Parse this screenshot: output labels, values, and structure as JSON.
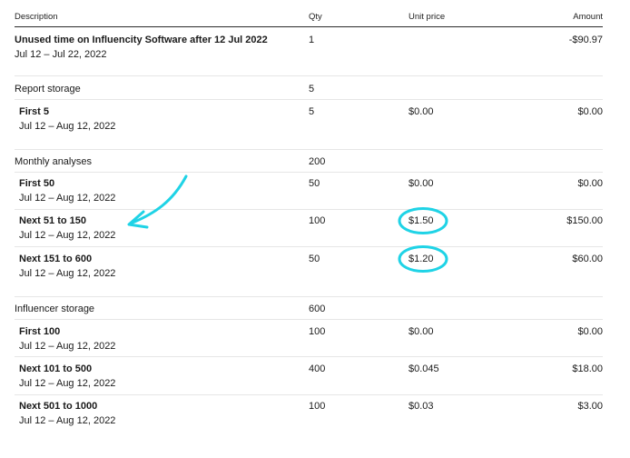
{
  "table": {
    "headers": {
      "description": "Description",
      "qty": "Qty",
      "unit_price": "Unit price",
      "amount": "Amount"
    },
    "rows": [
      {
        "kind": "line",
        "title": "Unused time on Influencity Software after 12 Jul 2022",
        "subtitle": "Jul 12 – Jul 22, 2022",
        "qty": "1",
        "unit_price": "",
        "amount": "-$90.97"
      },
      {
        "kind": "group",
        "title": "Report storage",
        "qty": "5"
      },
      {
        "kind": "tier",
        "title": "First 5",
        "subtitle": "Jul 12 – Aug 12, 2022",
        "qty": "5",
        "unit_price": "$0.00",
        "amount": "$0.00"
      },
      {
        "kind": "group",
        "title": "Monthly analyses",
        "qty": "200"
      },
      {
        "kind": "tier",
        "title": "First 50",
        "subtitle": "Jul 12 – Aug 12, 2022",
        "qty": "50",
        "unit_price": "$0.00",
        "amount": "$0.00"
      },
      {
        "kind": "tier",
        "title": "Next 51 to 150",
        "subtitle": "Jul 12 – Aug 12, 2022",
        "qty": "100",
        "unit_price": "$1.50",
        "amount": "$150.00"
      },
      {
        "kind": "tier",
        "title": "Next 151 to 600",
        "subtitle": "Jul 12 – Aug 12, 2022",
        "qty": "50",
        "unit_price": "$1.20",
        "amount": "$60.00"
      },
      {
        "kind": "group",
        "title": "Influencer storage",
        "qty": "600"
      },
      {
        "kind": "tier",
        "title": "First 100",
        "subtitle": "Jul 12 – Aug 12, 2022",
        "qty": "100",
        "unit_price": "$0.00",
        "amount": "$0.00"
      },
      {
        "kind": "tier",
        "title": "Next 101 to 500",
        "subtitle": "Jul 12 – Aug 12, 2022",
        "qty": "400",
        "unit_price": "$0.045",
        "amount": "$18.00"
      },
      {
        "kind": "tier",
        "title": "Next 501 to 1000",
        "subtitle": "Jul 12 – Aug 12, 2022",
        "qty": "100",
        "unit_price": "$0.03",
        "amount": "$3.00"
      }
    ]
  },
  "annotations": {
    "color": "#1fd3e6",
    "arrow_icon": "curved-arrow-icon",
    "circled_values": [
      "$1.50",
      "$1.20"
    ]
  }
}
